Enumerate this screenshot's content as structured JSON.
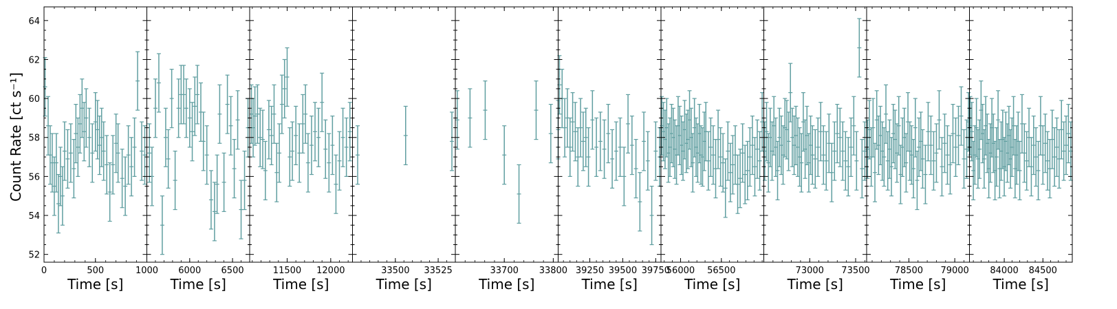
{
  "chart_data": {
    "type": "scatter",
    "ylabel": "Count Rate [ct s⁻¹]",
    "ylim": [
      51.6,
      64.7
    ],
    "yticks": [
      52,
      54,
      56,
      58,
      60,
      62,
      64
    ],
    "color": "#5f9ea0",
    "grid": false,
    "panels": [
      {
        "xlabel": "Time [s]",
        "xlim": [
          0,
          1000
        ],
        "xticks": [
          0,
          500,
          1000
        ],
        "x": [
          10,
          40,
          60,
          80,
          100,
          120,
          140,
          160,
          180,
          200,
          230,
          260,
          290,
          310,
          330,
          350,
          370,
          390,
          410,
          440,
          470,
          500,
          520,
          540,
          560,
          580,
          610,
          640,
          670,
          700,
          720,
          760,
          790,
          820,
          850,
          880,
          910,
          950,
          980
        ],
        "y": [
          60.6,
          58.6,
          57.1,
          56.7,
          55.5,
          56.7,
          54.6,
          56.0,
          55.0,
          57.3,
          56.9,
          57.2,
          56.4,
          58.2,
          57.5,
          58.7,
          59.5,
          58.3,
          59.0,
          58.0,
          57.2,
          58.8,
          58.4,
          57.6,
          58.0,
          57.3,
          56.6,
          55.2,
          56.6,
          57.7,
          57.2,
          55.9,
          55.5,
          57.1,
          56.5,
          57.5,
          60.9,
          57.3,
          57.1
        ],
        "err": [
          1.5,
          1.5,
          1.5,
          1.5,
          1.5,
          1.5,
          1.5,
          1.5,
          1.5,
          1.5,
          1.5,
          1.5,
          1.5,
          1.5,
          1.5,
          1.5,
          1.5,
          1.5,
          1.5,
          1.5,
          1.5,
          1.5,
          1.5,
          1.5,
          1.5,
          1.5,
          1.5,
          1.5,
          1.5,
          1.5,
          1.5,
          1.5,
          1.5,
          1.5,
          1.5,
          1.5,
          1.5,
          1.5,
          1.5
        ]
      },
      {
        "xlabel": "Time [s]",
        "xlim": [
          5500,
          6700
        ],
        "xticks": [
          6000,
          6500
        ],
        "x": [
          5530,
          5560,
          5600,
          5640,
          5680,
          5720,
          5750,
          5790,
          5830,
          5870,
          5900,
          5930,
          5960,
          6000,
          6030,
          6060,
          6090,
          6130,
          6160,
          6200,
          6250,
          6290,
          6320,
          6350,
          6400,
          6440,
          6480,
          6520,
          6560,
          6600,
          6640,
          6680
        ],
        "y": [
          57.2,
          56.0,
          59.5,
          60.8,
          53.5,
          58.0,
          56.9,
          60.0,
          55.8,
          59.5,
          60.2,
          60.2,
          59.5,
          59.0,
          58.3,
          59.6,
          60.2,
          59.3,
          57.8,
          57.1,
          54.8,
          54.2,
          55.6,
          59.2,
          55.7,
          59.7,
          58.6,
          56.4,
          58.9,
          54.3,
          55.8,
          58.5
        ],
        "err": [
          1.5,
          1.5,
          1.5,
          1.5,
          1.5,
          1.5,
          1.5,
          1.5,
          1.5,
          1.5,
          1.5,
          1.5,
          1.5,
          1.5,
          1.5,
          1.5,
          1.5,
          1.5,
          1.5,
          1.5,
          1.5,
          1.5,
          1.5,
          1.5,
          1.5,
          1.5,
          1.5,
          1.5,
          1.5,
          1.5,
          1.5,
          1.5
        ]
      },
      {
        "xlabel": "Time [s]",
        "xlim": [
          11070,
          12250
        ],
        "xticks": [
          11500,
          12000
        ],
        "x": [
          11090,
          11110,
          11130,
          11160,
          11190,
          11220,
          11250,
          11290,
          11320,
          11350,
          11380,
          11410,
          11440,
          11470,
          11500,
          11530,
          11560,
          11600,
          11640,
          11680,
          11710,
          11740,
          11780,
          11820,
          11860,
          11900,
          11940,
          11980,
          12020,
          12060,
          12100,
          12140,
          12180,
          12220
        ],
        "y": [
          59.2,
          58.5,
          59.1,
          59.2,
          58.0,
          57.9,
          56.3,
          58.4,
          58.1,
          59.2,
          56.2,
          57.2,
          59.7,
          60.5,
          61.1,
          57.0,
          57.3,
          58.1,
          57.2,
          58.7,
          59.2,
          56.7,
          57.6,
          58.3,
          58.0,
          59.8,
          57.4,
          56.7,
          57.6,
          55.6,
          56.8,
          58.0,
          57.5,
          58.3
        ],
        "err": [
          1.5,
          1.5,
          1.5,
          1.5,
          1.5,
          1.5,
          1.5,
          1.5,
          1.5,
          1.5,
          1.5,
          1.5,
          1.5,
          1.5,
          1.5,
          1.5,
          1.5,
          1.5,
          1.5,
          1.5,
          1.5,
          1.5,
          1.5,
          1.5,
          1.5,
          1.5,
          1.5,
          1.5,
          1.5,
          1.5,
          1.5,
          1.5,
          1.5,
          1.5
        ]
      },
      {
        "xlabel": "Time [s]",
        "xlim": [
          33475,
          33535
        ],
        "xticks": [
          33500,
          33525
        ],
        "x": [
          33478,
          33506,
          33533
        ],
        "y": [
          57.1,
          58.1,
          57.8
        ],
        "err": [
          1.5,
          1.5,
          1.5
        ]
      },
      {
        "xlabel": "Time [s]",
        "xlim": [
          33600,
          33810
        ],
        "xticks": [
          33700,
          33800
        ],
        "x": [
          33604,
          33630,
          33661,
          33700,
          33730,
          33765,
          33795,
          33810
        ],
        "y": [
          58.9,
          59.0,
          59.4,
          57.1,
          55.1,
          59.4,
          58.2,
          58.4
        ],
        "err": [
          1.5,
          1.5,
          1.5,
          1.5,
          1.5,
          1.5,
          1.5,
          1.5
        ]
      },
      {
        "xlabel": "Time [s]",
        "xlim": [
          39010,
          39790
        ],
        "xticks": [
          39250,
          39500,
          39750
        ],
        "x": [
          39020,
          39040,
          39060,
          39080,
          39100,
          39120,
          39140,
          39160,
          39180,
          39200,
          39220,
          39240,
          39270,
          39300,
          39330,
          39360,
          39390,
          39420,
          39450,
          39480,
          39510,
          39540,
          39570,
          39600,
          39630,
          39660,
          39690,
          39720,
          39750,
          39780
        ],
        "y": [
          60.7,
          60.0,
          58.5,
          59.0,
          57.5,
          58.8,
          58.3,
          57.0,
          58.5,
          57.8,
          58.0,
          57.0,
          58.9,
          57.5,
          57.8,
          57.4,
          58.2,
          56.9,
          57.3,
          57.5,
          56.0,
          58.7,
          57.6,
          56.4,
          54.7,
          57.8,
          56.8,
          54.0,
          57.3,
          57.0
        ],
        "err": [
          1.5,
          1.5,
          1.5,
          1.5,
          1.5,
          1.5,
          1.5,
          1.5,
          1.5,
          1.5,
          1.5,
          1.5,
          1.5,
          1.5,
          1.5,
          1.5,
          1.5,
          1.5,
          1.5,
          1.5,
          1.5,
          1.5,
          1.5,
          1.5,
          1.5,
          1.5,
          1.5,
          1.5,
          1.5,
          1.5
        ]
      },
      {
        "xlabel": "Time [s]",
        "xlim": [
          55760,
          57020
        ],
        "xticks": [
          56000,
          56500
        ],
        "x": [
          55770,
          55790,
          55810,
          55830,
          55850,
          55870,
          55890,
          55910,
          55930,
          55950,
          55970,
          55990,
          56010,
          56030,
          56050,
          56070,
          56090,
          56110,
          56130,
          56150,
          56170,
          56190,
          56210,
          56230,
          56250,
          56270,
          56290,
          56310,
          56340,
          56370,
          56400,
          56430,
          56460,
          56490,
          56520,
          56550,
          56580,
          56610,
          56640,
          56670,
          56700,
          56730,
          56760,
          56790,
          56820,
          56850,
          56880,
          56910,
          56940,
          56970,
          57000
        ],
        "y": [
          58.6,
          58.3,
          57.9,
          58.5,
          57.2,
          57.5,
          58.2,
          58.0,
          57.4,
          57.1,
          58.6,
          58.1,
          57.6,
          57.3,
          58.4,
          57.7,
          57.9,
          58.9,
          58.0,
          56.7,
          58.5,
          57.5,
          57.2,
          58.2,
          57.1,
          57.0,
          57.8,
          58.3,
          56.8,
          57.5,
          57.1,
          56.4,
          57.9,
          57.0,
          56.7,
          55.4,
          57.3,
          56.2,
          56.6,
          57.1,
          55.6,
          55.9,
          57.2,
          56.1,
          56.3,
          57.0,
          57.6,
          56.5,
          57.4,
          56.8,
          58.8
        ],
        "err": [
          1.5,
          1.5,
          1.5,
          1.5,
          1.5,
          1.5,
          1.5,
          1.5,
          1.5,
          1.5,
          1.5,
          1.5,
          1.5,
          1.5,
          1.5,
          1.5,
          1.5,
          1.5,
          1.5,
          1.5,
          1.5,
          1.5,
          1.5,
          1.5,
          1.5,
          1.5,
          1.5,
          1.5,
          1.5,
          1.5,
          1.5,
          1.5,
          1.5,
          1.5,
          1.5,
          1.5,
          1.5,
          1.5,
          1.5,
          1.5,
          1.5,
          1.5,
          1.5,
          1.5,
          1.5,
          1.5,
          1.5,
          1.5,
          1.5,
          1.5,
          1.5
        ]
      },
      {
        "xlabel": "Time [s]",
        "xlim": [
          72500,
          73620
        ],
        "xticks": [
          73000,
          73500
        ],
        "x": [
          72510,
          72530,
          72550,
          72570,
          72590,
          72610,
          72630,
          72650,
          72670,
          72690,
          72710,
          72730,
          72750,
          72770,
          72790,
          72810,
          72830,
          72850,
          72870,
          72890,
          72910,
          72930,
          72950,
          72970,
          72990,
          73010,
          73030,
          73060,
          73090,
          73120,
          73150,
          73180,
          73210,
          73240,
          73270,
          73300,
          73330,
          73360,
          73390,
          73420,
          73450,
          73480,
          73510,
          73540,
          73570,
          73600
        ],
        "y": [
          57.3,
          58.3,
          56.7,
          58.0,
          57.3,
          58.6,
          57.5,
          56.3,
          58.0,
          57.6,
          57.1,
          58.5,
          58.4,
          57.8,
          60.3,
          58.0,
          57.6,
          58.1,
          57.5,
          57.0,
          56.7,
          58.8,
          57.4,
          58.1,
          56.7,
          57.6,
          57.1,
          56.9,
          57.5,
          58.3,
          57.1,
          56.8,
          57.7,
          56.2,
          57.3,
          58.2,
          58.0,
          57.3,
          56.8,
          56.5,
          57.5,
          58.6,
          56.8,
          62.6,
          56.4,
          57.3
        ],
        "err": [
          1.5,
          1.5,
          1.5,
          1.5,
          1.5,
          1.5,
          1.5,
          1.5,
          1.5,
          1.5,
          1.5,
          1.5,
          1.5,
          1.5,
          1.5,
          1.5,
          1.5,
          1.5,
          1.5,
          1.5,
          1.5,
          1.5,
          1.5,
          1.5,
          1.5,
          1.5,
          1.5,
          1.5,
          1.5,
          1.5,
          1.5,
          1.5,
          1.5,
          1.5,
          1.5,
          1.5,
          1.5,
          1.5,
          1.5,
          1.5,
          1.5,
          1.5,
          1.5,
          1.5,
          1.5,
          1.5
        ]
      },
      {
        "xlabel": "Time [s]",
        "xlim": [
          78040,
          79160
        ],
        "xticks": [
          78500,
          79000
        ],
        "x": [
          78050,
          78070,
          78090,
          78110,
          78130,
          78150,
          78170,
          78190,
          78210,
          78230,
          78250,
          78270,
          78290,
          78310,
          78330,
          78350,
          78370,
          78390,
          78410,
          78430,
          78450,
          78470,
          78490,
          78510,
          78530,
          78550,
          78570,
          78590,
          78610,
          78630,
          78650,
          78680,
          78710,
          78740,
          78770,
          78800,
          78830,
          78860,
          78890,
          78920,
          78950,
          78980,
          79010,
          79040,
          79070,
          79100,
          79130,
          79150
        ],
        "y": [
          57.4,
          58.4,
          57.0,
          58.5,
          56.2,
          58.9,
          57.6,
          58.1,
          57.3,
          57.0,
          59.2,
          56.8,
          57.4,
          56.5,
          58.2,
          57.9,
          57.2,
          58.6,
          56.1,
          57.5,
          58.0,
          56.7,
          58.8,
          57.3,
          57.1,
          56.4,
          58.5,
          55.8,
          57.5,
          57.8,
          56.9,
          56.1,
          58.3,
          57.6,
          56.8,
          57.2,
          58.9,
          56.5,
          57.7,
          57.1,
          56.6,
          58.2,
          57.5,
          58.1,
          59.1,
          56.9,
          57.4,
          58.8
        ],
        "err": [
          1.5,
          1.5,
          1.5,
          1.5,
          1.5,
          1.5,
          1.5,
          1.5,
          1.5,
          1.5,
          1.5,
          1.5,
          1.5,
          1.5,
          1.5,
          1.5,
          1.5,
          1.5,
          1.5,
          1.5,
          1.5,
          1.5,
          1.5,
          1.5,
          1.5,
          1.5,
          1.5,
          1.5,
          1.5,
          1.5,
          1.5,
          1.5,
          1.5,
          1.5,
          1.5,
          1.5,
          1.5,
          1.5,
          1.5,
          1.5,
          1.5,
          1.5,
          1.5,
          1.5,
          1.5,
          1.5,
          1.5,
          1.5
        ]
      },
      {
        "xlabel": "Time [s]",
        "xlim": [
          83550,
          84880
        ],
        "xticks": [
          84000,
          84500
        ],
        "x": [
          83560,
          83580,
          83600,
          83620,
          83640,
          83660,
          83680,
          83700,
          83720,
          83740,
          83760,
          83780,
          83800,
          83820,
          83840,
          83860,
          83880,
          83900,
          83920,
          83940,
          83960,
          83980,
          84000,
          84020,
          84040,
          84060,
          84080,
          84100,
          84120,
          84140,
          84160,
          84180,
          84200,
          84230,
          84260,
          84290,
          84320,
          84350,
          84380,
          84410,
          84440,
          84470,
          84500,
          84530,
          84560,
          84590,
          84620,
          84650,
          84680,
          84710,
          84740,
          84770,
          84800,
          84830,
          84860
        ],
        "y": [
          58.6,
          58.3,
          56.3,
          57.1,
          58.5,
          56.9,
          57.4,
          59.4,
          58.2,
          56.9,
          58.6,
          57.7,
          56.4,
          57.2,
          58.5,
          57.7,
          56.3,
          57.0,
          58.9,
          56.4,
          57.3,
          57.9,
          56.5,
          57.8,
          57.2,
          58.1,
          56.9,
          57.5,
          58.6,
          56.4,
          57.1,
          57.8,
          56.3,
          58.7,
          57.2,
          56.8,
          58.0,
          56.5,
          57.6,
          57.0,
          56.3,
          58.6,
          57.1,
          57.7,
          56.8,
          56.4,
          57.9,
          57.0,
          57.5,
          56.9,
          58.4,
          57.3,
          57.6,
          58.2,
          57.3
        ],
        "err": [
          1.5,
          1.5,
          1.5,
          1.5,
          1.5,
          1.5,
          1.5,
          1.5,
          1.5,
          1.5,
          1.5,
          1.5,
          1.5,
          1.5,
          1.5,
          1.5,
          1.5,
          1.5,
          1.5,
          1.5,
          1.5,
          1.5,
          1.5,
          1.5,
          1.5,
          1.5,
          1.5,
          1.5,
          1.5,
          1.5,
          1.5,
          1.5,
          1.5,
          1.5,
          1.5,
          1.5,
          1.5,
          1.5,
          1.5,
          1.5,
          1.5,
          1.5,
          1.5,
          1.5,
          1.5,
          1.5,
          1.5,
          1.5,
          1.5,
          1.5,
          1.5,
          1.5,
          1.5,
          1.5,
          1.5
        ]
      }
    ]
  }
}
